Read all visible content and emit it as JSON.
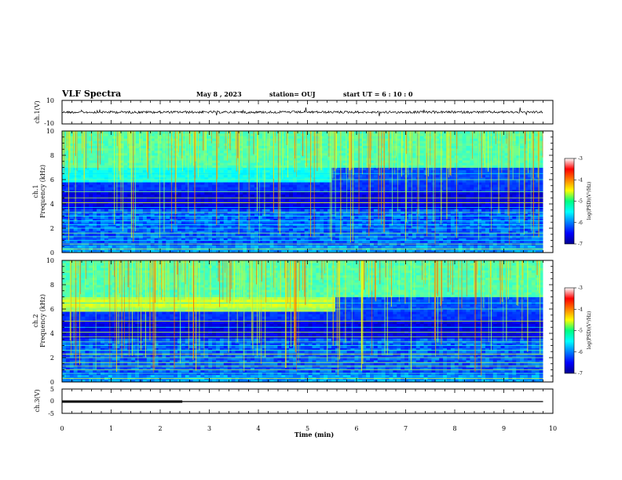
{
  "header": {
    "title": "VLF Spectra",
    "date": "May 8 , 2023",
    "station": "station= OUJ",
    "start_ut": "start UT = 6 : 10 : 0"
  },
  "chart_data": [
    {
      "type": "line",
      "panel": "ch1-waveform",
      "ylabel": "ch.1(V)",
      "ylim": [
        -10,
        10
      ],
      "yticks": [
        "10",
        "-10"
      ],
      "x_range": [
        0,
        10
      ],
      "trace_level": 0,
      "data_end": 9.8,
      "line_color": "#000000"
    },
    {
      "type": "heatmap",
      "panel": "ch1-spectrogram",
      "ylabel": "ch.1 Frequency (kHz)",
      "ylim": [
        0,
        10
      ],
      "yticks": [
        "0",
        "2",
        "4",
        "6",
        "8",
        "10"
      ],
      "x_range": [
        0,
        10
      ],
      "data_end": 9.8,
      "colorbar": {
        "label": "log(PSD)(V²/Hz)",
        "range": [
          -7,
          -3
        ],
        "ticks": [
          "-3",
          "-4",
          "-5",
          "-6",
          "-7"
        ]
      }
    },
    {
      "type": "heatmap",
      "panel": "ch2-spectrogram",
      "ylabel": "ch.2 Frequency (kHz)",
      "ylim": [
        0,
        10
      ],
      "yticks": [
        "0",
        "2",
        "4",
        "6",
        "8",
        "10"
      ],
      "x_range": [
        0,
        10
      ],
      "data_end": 9.8,
      "colorbar": {
        "label": "log(PSD)(V²/Hz)",
        "range": [
          -7,
          -3
        ],
        "ticks": [
          "-3",
          "-4",
          "-5",
          "-6",
          "-7"
        ]
      }
    },
    {
      "type": "line",
      "panel": "ch3-level",
      "ylabel": "ch.3(V)",
      "ylim": [
        -5,
        5
      ],
      "yticks": [
        "5",
        "0",
        "-5"
      ],
      "x_range": [
        0,
        10
      ],
      "trace_level": 0,
      "thick_segment": [
        0,
        2.45
      ],
      "data_end": 9.8,
      "line_color": "#000000"
    }
  ],
  "x_axis": {
    "label": "Time (min)",
    "ticks": [
      "0",
      "1",
      "2",
      "3",
      "4",
      "5",
      "6",
      "7",
      "8",
      "9",
      "10"
    ]
  }
}
